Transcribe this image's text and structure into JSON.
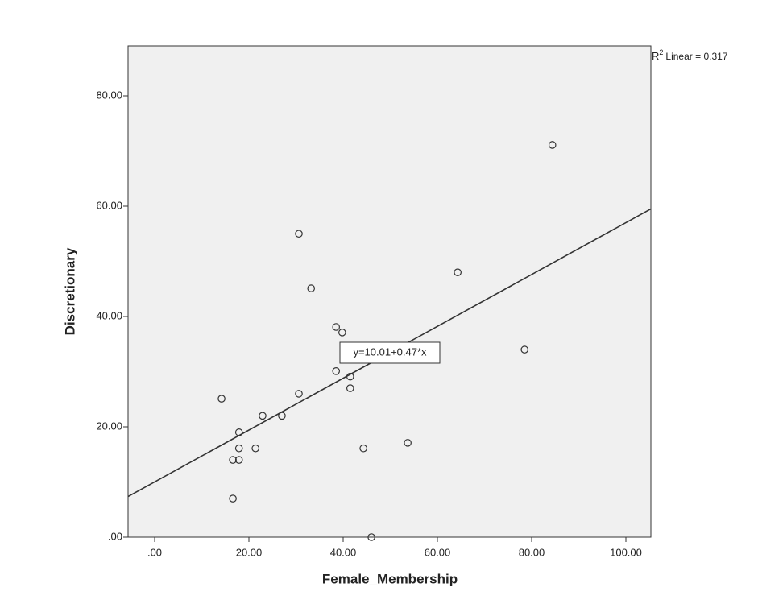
{
  "chart_data": {
    "type": "scatter",
    "x_label": "Female_Membership",
    "y_label": "Discretionary",
    "x": [
      84.4,
      30.6,
      33.2,
      64.3,
      38.5,
      39.8,
      78.5,
      38.5,
      41.5,
      41.5,
      30.6,
      14.2,
      22.9,
      27.0,
      17.9,
      17.9,
      21.4,
      44.3,
      53.7,
      16.6,
      17.9,
      16.6,
      46.0
    ],
    "y": [
      71.1,
      55.0,
      45.1,
      48.0,
      38.1,
      37.1,
      34.0,
      30.1,
      29.1,
      27.0,
      26.0,
      25.1,
      22.0,
      22.0,
      19.0,
      16.1,
      16.1,
      16.1,
      17.1,
      14.0,
      14.0,
      7.0,
      0
    ],
    "marker_color": "#333333",
    "background": "#f0f0f0",
    "xlim": [
      -5.64,
      105.3
    ],
    "ylim": [
      0,
      89.05
    ],
    "xticks": [
      {
        "value": 0,
        "label": ".00"
      },
      {
        "value": 20,
        "label": "20.00"
      },
      {
        "value": 40,
        "label": "40.00"
      },
      {
        "value": 60,
        "label": "60.00"
      },
      {
        "value": 80,
        "label": "80.00"
      },
      {
        "value": 100,
        "label": "100.00"
      }
    ],
    "yticks": [
      {
        "value": 0,
        "label": ".00"
      },
      {
        "value": 20,
        "label": "20.00"
      },
      {
        "value": 40,
        "label": "40.00"
      },
      {
        "value": 60,
        "label": "60.00"
      },
      {
        "value": 80,
        "label": "80.00"
      }
    ],
    "fit": {
      "intercept": 10.01,
      "slope": 0.47,
      "label": "y=10.01+0.47*x",
      "color": "#333333"
    },
    "r2_label": {
      "prefix": "R",
      "superscript": "2",
      "text": "Linear = 0.317"
    }
  }
}
